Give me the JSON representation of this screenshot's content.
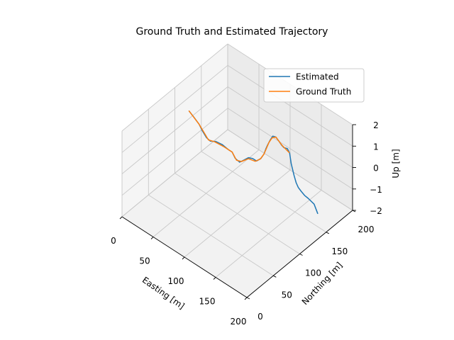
{
  "chart_data": {
    "type": "line",
    "title": "Ground Truth and Estimated Trajectory",
    "xlabel": "Easting [m]",
    "ylabel": "Northing [m]",
    "zlabel": "Up [m]",
    "xlim": [
      0,
      200
    ],
    "ylim": [
      0,
      200
    ],
    "zlim": [
      -2,
      2
    ],
    "xticks": [
      "0",
      "50",
      "100",
      "150",
      "200"
    ],
    "yticks": [
      "0",
      "50",
      "100",
      "150",
      "200"
    ],
    "zticks": [
      "−2",
      "−1",
      "0",
      "1",
      "2"
    ],
    "grid": true,
    "legend": "upper right",
    "series": [
      {
        "name": "Estimated",
        "color": "#1f77b4",
        "points": [
          [
            0,
            127,
            0.35
          ],
          [
            8,
            127,
            0.2
          ],
          [
            15,
            128,
            0.0
          ],
          [
            20,
            128,
            -0.2
          ],
          [
            27,
            128,
            -0.4
          ],
          [
            33,
            128,
            -0.45
          ],
          [
            42,
            128,
            -0.3
          ],
          [
            52,
            128,
            -0.25
          ],
          [
            62,
            128,
            -0.3
          ],
          [
            68,
            128,
            -0.3
          ],
          [
            73,
            128,
            -0.5
          ],
          [
            80,
            128,
            -0.55
          ],
          [
            85,
            130,
            -0.4
          ],
          [
            90,
            133,
            -0.25
          ],
          [
            96,
            134,
            -0.2
          ],
          [
            102,
            134,
            -0.2
          ],
          [
            109,
            134,
            0.05
          ],
          [
            114,
            134,
            0.35
          ],
          [
            117,
            134,
            0.65
          ],
          [
            120,
            134,
            0.9
          ],
          [
            124,
            134,
            1.2
          ],
          [
            128,
            134,
            1.45
          ],
          [
            133,
            134,
            1.5
          ],
          [
            138,
            134,
            1.4
          ],
          [
            142,
            134,
            1.3
          ],
          [
            146,
            134,
            1.25
          ],
          [
            149,
            137,
            1.2
          ],
          [
            150,
            140,
            0.95
          ],
          [
            150,
            143,
            0.4
          ],
          [
            151,
            147,
            -0.2
          ],
          [
            152,
            150,
            -0.6
          ],
          [
            152,
            154,
            -0.9
          ],
          [
            154,
            157,
            -1.1
          ],
          [
            157,
            160,
            -1.3
          ],
          [
            161,
            162,
            -1.4
          ],
          [
            168,
            165,
            -1.6
          ],
          [
            172,
            167,
            -2.0
          ]
        ]
      },
      {
        "name": "Ground Truth",
        "color": "#ff7f0e",
        "points": [
          [
            0,
            127,
            0.35
          ],
          [
            15,
            128,
            0.0
          ],
          [
            30,
            128,
            -0.45
          ],
          [
            40,
            128,
            -0.35
          ],
          [
            55,
            128,
            -0.3
          ],
          [
            68,
            128,
            -0.3
          ],
          [
            75,
            128,
            -0.55
          ],
          [
            82,
            129,
            -0.5
          ],
          [
            90,
            133,
            -0.3
          ],
          [
            100,
            134,
            -0.25
          ],
          [
            108,
            134,
            0.0
          ],
          [
            114,
            134,
            0.35
          ],
          [
            118,
            134,
            0.7
          ],
          [
            122,
            134,
            1.05
          ],
          [
            127,
            134,
            1.35
          ],
          [
            133,
            134,
            1.5
          ],
          [
            138,
            134,
            1.4
          ],
          [
            143,
            134,
            1.3
          ],
          [
            148,
            135,
            1.2
          ],
          [
            150,
            139,
            1.0
          ]
        ]
      }
    ]
  }
}
